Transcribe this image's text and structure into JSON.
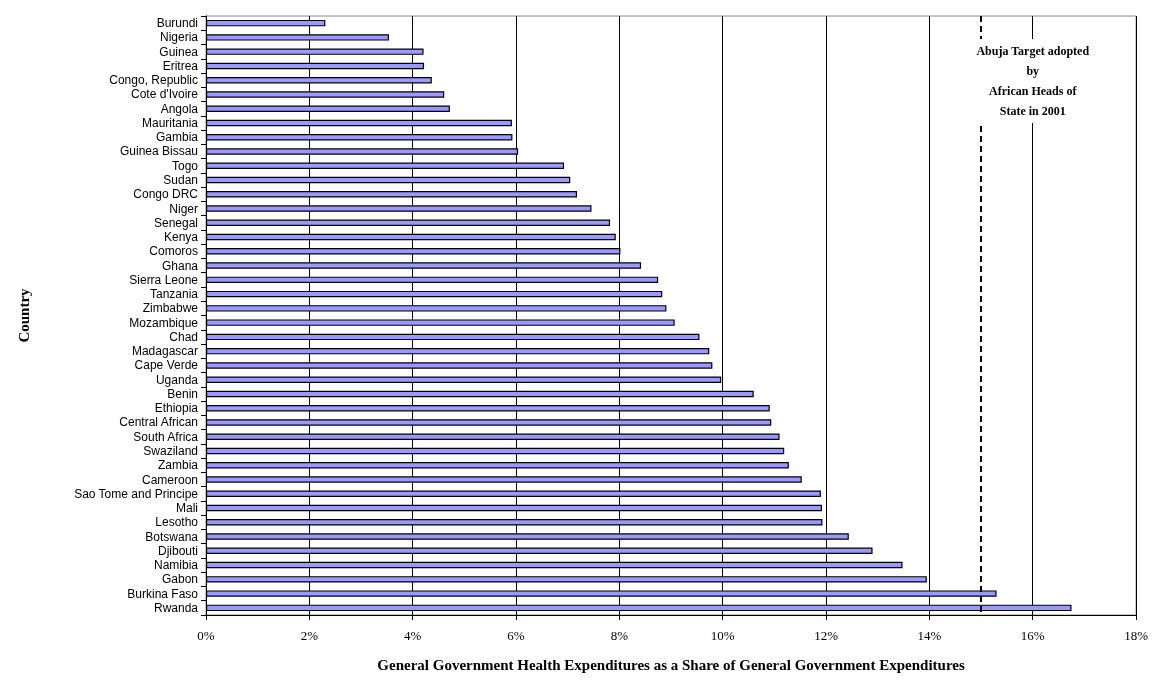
{
  "chart_data": {
    "type": "bar",
    "orientation": "horizontal",
    "xlabel": "General Government Health Expenditures as a Share of General Government Expenditures",
    "ylabel": "Country",
    "categories": [
      "Burundi",
      "Nigeria",
      "Guinea",
      "Eritrea",
      "Congo, Republic",
      "Cote d'Ivoire",
      "Angola",
      "Mauritania",
      "Gambia",
      "Guinea Bissau",
      "Togo",
      "Sudan",
      "Congo DRC",
      "Niger",
      "Senegal",
      "Kenya",
      "Comoros",
      "Ghana",
      "Sierra Leone",
      "Tanzania",
      "Zimbabwe",
      "Mozambique",
      "Chad",
      "Madagascar",
      "Cape Verde",
      "Uganda",
      "Benin",
      "Ethiopia",
      "Central African",
      "South Africa",
      "Swaziland",
      "Zambia",
      "Cameroon",
      "Sao Tome and Principe",
      "Mali",
      "Lesotho",
      "Botswana",
      "Djibouti",
      "Namibia",
      "Gabon",
      "Burkina Faso",
      "Rwanda"
    ],
    "values": [
      2.31,
      3.54,
      4.21,
      4.22,
      4.37,
      4.61,
      4.72,
      5.92,
      5.93,
      6.04,
      6.93,
      7.05,
      7.18,
      7.46,
      7.82,
      7.93,
      8.02,
      8.42,
      8.75,
      8.83,
      8.91,
      9.07,
      9.55,
      9.74,
      9.8,
      9.97,
      10.6,
      10.91,
      10.94,
      11.1,
      11.19,
      11.28,
      11.53,
      11.9,
      11.92,
      11.93,
      12.44,
      12.9,
      13.48,
      13.95,
      15.3,
      16.75
    ],
    "color": "#9999ff",
    "xlim": [
      0,
      18
    ],
    "xticks": [
      {
        "value": 0,
        "label": "0%"
      },
      {
        "value": 2,
        "label": "2%"
      },
      {
        "value": 4,
        "label": "4%"
      },
      {
        "value": 6,
        "label": "6%"
      },
      {
        "value": 8,
        "label": "8%"
      },
      {
        "value": 10,
        "label": "10%"
      },
      {
        "value": 12,
        "label": "12%"
      },
      {
        "value": 14,
        "label": "14%"
      },
      {
        "value": 16,
        "label": "16%"
      },
      {
        "value": 18,
        "label": "18%"
      }
    ],
    "grid": "x",
    "ref_lines": [
      {
        "axis": "x",
        "value": 15,
        "label": "Abuja Target adopted\nby\nAfrican Heads of\nState in 2001",
        "line_style": "dashed",
        "color": "#000000"
      }
    ]
  }
}
